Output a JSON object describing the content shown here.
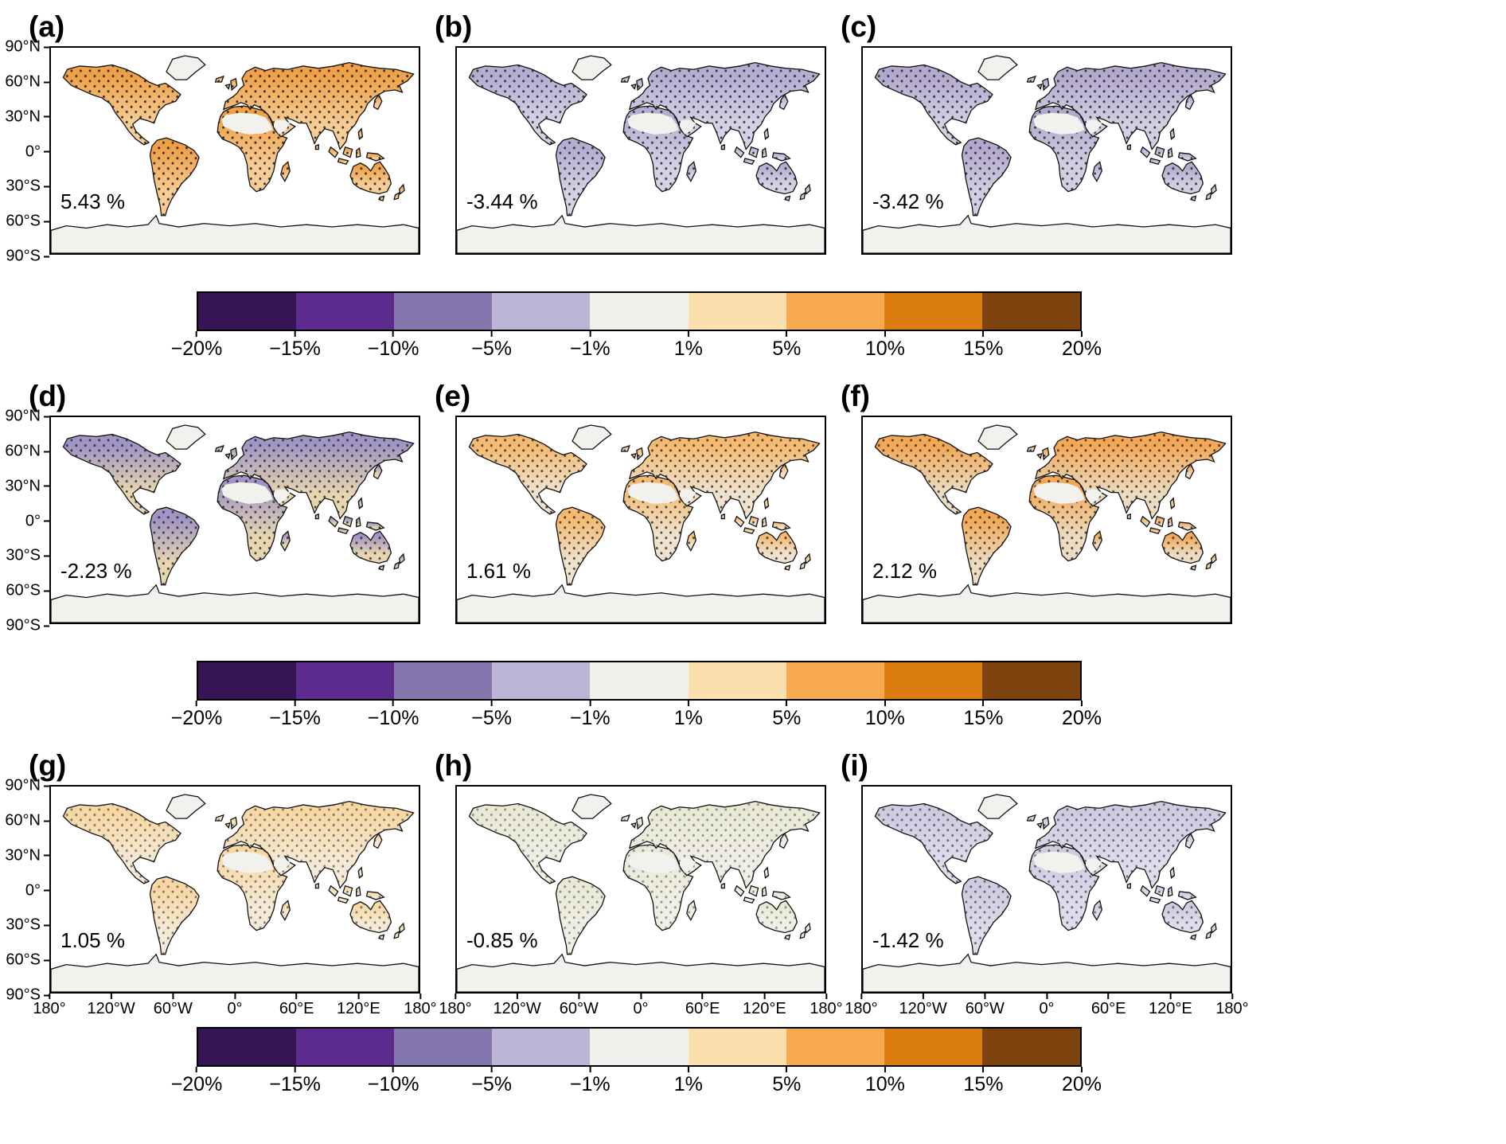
{
  "figure": {
    "panels": [
      {
        "label": "(a)",
        "mean": "5.43 %",
        "land_color_top": "#efa148",
        "land_color_bottom": "#f6cd96",
        "stipple_opacity": 0.9
      },
      {
        "label": "(b)",
        "mean": "-3.44 %",
        "land_color_top": "#b6add2",
        "land_color_bottom": "#d6d2e5",
        "stipple_opacity": 0.85
      },
      {
        "label": "(c)",
        "mean": "-3.42 %",
        "land_color_top": "#b3a9ce",
        "land_color_bottom": "#d3cfe2",
        "stipple_opacity": 0.85
      },
      {
        "label": "(d)",
        "mean": "-2.23 %",
        "land_color_top": "#a195c5",
        "land_color_bottom": "#e7d6b0",
        "stipple_opacity": 0.8
      },
      {
        "label": "(e)",
        "mean": "1.61 %",
        "land_color_top": "#f4ba71",
        "land_color_bottom": "#efe3cf",
        "stipple_opacity": 0.8
      },
      {
        "label": "(f)",
        "mean": "2.12 %",
        "land_color_top": "#f2a855",
        "land_color_bottom": "#ecdcc2",
        "stipple_opacity": 0.8
      },
      {
        "label": "(g)",
        "mean": "1.05 %",
        "land_color_top": "#f7d8a4",
        "land_color_bottom": "#f5ead6",
        "stipple_opacity": 0.55
      },
      {
        "label": "(h)",
        "mean": "-0.85 %",
        "land_color_top": "#e9e9d6",
        "land_color_bottom": "#f0efe5",
        "stipple_opacity": 0.45
      },
      {
        "label": "(i)",
        "mean": "-1.42 %",
        "land_color_top": "#d0cbe1",
        "land_color_bottom": "#dfdcec",
        "stipple_opacity": 0.6
      }
    ],
    "yticks": [
      "90°N",
      "60°N",
      "30°N",
      "0°",
      "30°S",
      "60°S",
      "90°S"
    ],
    "xticks": [
      "180°",
      "120°W",
      "60°W",
      "0°",
      "60°E",
      "120°E",
      "180°"
    ],
    "colorbar": {
      "colors": [
        "#351555",
        "#5c2b8d",
        "#8477ae",
        "#bdb5d6",
        "#f2f0ec",
        "#fbdfad",
        "#f6a94e",
        "#dc7d11",
        "#7c430f"
      ],
      "ticks": [
        "−20%",
        "−15%",
        "−10%",
        "−5%",
        "−1%",
        "1%",
        "5%",
        "10%",
        "15%",
        "20%"
      ]
    }
  },
  "chart_data": {
    "type": "heatmap",
    "subtype": "global-map-grid",
    "projection": "equirectangular",
    "grid": false,
    "panels": [
      {
        "label": "(a)",
        "global_mean_pct": 5.43
      },
      {
        "label": "(b)",
        "global_mean_pct": -3.44
      },
      {
        "label": "(c)",
        "global_mean_pct": -3.42
      },
      {
        "label": "(d)",
        "global_mean_pct": -2.23
      },
      {
        "label": "(e)",
        "global_mean_pct": 1.61
      },
      {
        "label": "(f)",
        "global_mean_pct": 2.12
      },
      {
        "label": "(g)",
        "global_mean_pct": 1.05
      },
      {
        "label": "(h)",
        "global_mean_pct": -0.85
      },
      {
        "label": "(i)",
        "global_mean_pct": -1.42
      }
    ],
    "colorbar": {
      "unit": "%",
      "orientation": "horizontal",
      "boundaries_pct": [
        -20,
        -15,
        -10,
        -5,
        -1,
        1,
        5,
        10,
        15,
        20
      ],
      "segment_colors": [
        "#351555",
        "#5c2b8d",
        "#8477ae",
        "#bdb5d6",
        "#f2f0ec",
        "#fbdfad",
        "#f6a94e",
        "#dc7d11",
        "#7c430f"
      ]
    },
    "x_axis": {
      "ticks": [
        "180°",
        "120°W",
        "60°W",
        "0°",
        "60°E",
        "120°E",
        "180°"
      ],
      "range_deg": [
        -180,
        180
      ]
    },
    "y_axis": {
      "ticks": [
        "90°N",
        "60°N",
        "30°N",
        "0°",
        "30°S",
        "60°S",
        "90°S"
      ],
      "range_deg": [
        -90,
        90
      ]
    },
    "stipple_dots_over_land": true
  }
}
